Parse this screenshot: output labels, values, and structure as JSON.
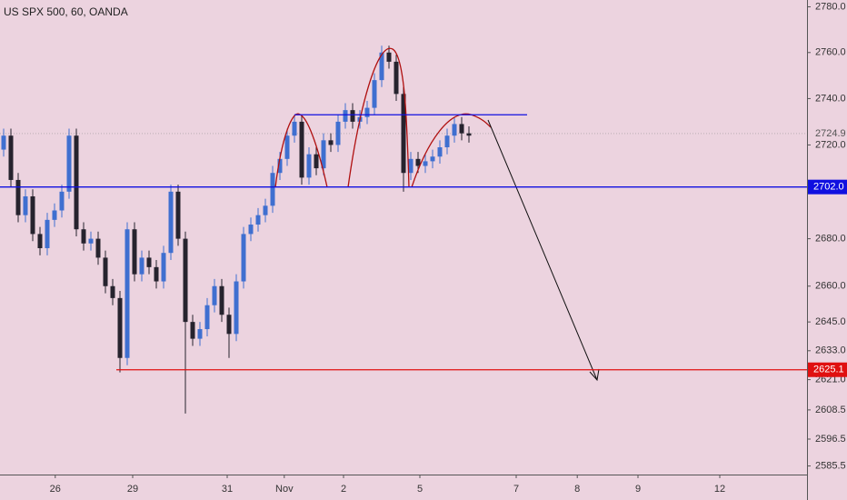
{
  "chart_data": {
    "type": "candlestick",
    "title": "US SPX 500, 60, OANDA",
    "x": [
      0,
      1,
      2,
      3,
      4,
      5,
      6,
      7,
      8,
      9,
      10,
      11,
      12,
      13,
      14,
      15,
      16,
      17,
      18,
      19,
      20,
      21,
      22,
      23,
      24,
      25,
      26,
      27,
      28,
      29,
      30,
      31,
      32,
      33,
      34,
      35,
      36,
      37,
      38,
      39,
      40,
      41,
      42,
      43,
      44,
      45,
      46,
      47,
      48,
      49,
      50,
      51,
      52,
      53,
      54,
      55,
      56,
      57,
      58,
      59,
      60,
      61,
      62,
      63,
      64
    ],
    "open": [
      2718,
      2724,
      2705,
      2690,
      2698,
      2682,
      2676,
      2688,
      2692,
      2700,
      2724,
      2684,
      2678,
      2680,
      2672,
      2660,
      2655,
      2630,
      2684,
      2665,
      2672,
      2668,
      2662,
      2674,
      2700,
      2680,
      2645,
      2638,
      2642,
      2652,
      2660,
      2648,
      2640,
      2662,
      2682,
      2686,
      2690,
      2694,
      2708,
      2714,
      2724,
      2730,
      2706,
      2716,
      2710,
      2722,
      2720,
      2730,
      2735,
      2730,
      2732,
      2736,
      2748,
      2760,
      2756,
      2742,
      2708,
      2714,
      2711,
      2713,
      2715,
      2719,
      2724,
      2729,
      2725
    ],
    "high": [
      2727,
      2727,
      2708,
      2701,
      2701,
      2685,
      2691,
      2695,
      2703,
      2727,
      2727,
      2687,
      2683,
      2683,
      2675,
      2663,
      2658,
      2687,
      2687,
      2675,
      2675,
      2671,
      2677,
      2703,
      2703,
      2683,
      2648,
      2645,
      2655,
      2663,
      2663,
      2651,
      2665,
      2685,
      2689,
      2693,
      2697,
      2711,
      2717,
      2727,
      2733,
      2733,
      2719,
      2719,
      2725,
      2725,
      2733,
      2738,
      2738,
      2735,
      2739,
      2751,
      2763,
      2763,
      2759,
      2745,
      2717,
      2717,
      2716,
      2718,
      2722,
      2727,
      2732,
      2732,
      2728
    ],
    "low": [
      2715,
      2702,
      2687,
      2687,
      2679,
      2673,
      2673,
      2685,
      2689,
      2697,
      2681,
      2675,
      2675,
      2669,
      2657,
      2652,
      2624,
      2627,
      2662,
      2662,
      2665,
      2659,
      2659,
      2671,
      2677,
      2607,
      2635,
      2635,
      2639,
      2649,
      2645,
      2630,
      2637,
      2659,
      2679,
      2683,
      2687,
      2691,
      2705,
      2711,
      2721,
      2703,
      2703,
      2707,
      2707,
      2717,
      2717,
      2727,
      2727,
      2727,
      2729,
      2733,
      2745,
      2753,
      2739,
      2700,
      2705,
      2708,
      2708,
      2710,
      2712,
      2716,
      2721,
      2722,
      2721
    ],
    "close": [
      2724,
      2705,
      2690,
      2698,
      2682,
      2676,
      2688,
      2692,
      2700,
      2724,
      2684,
      2678,
      2680,
      2672,
      2660,
      2655,
      2630,
      2684,
      2665,
      2672,
      2668,
      2662,
      2674,
      2700,
      2680,
      2645,
      2638,
      2642,
      2652,
      2660,
      2648,
      2640,
      2662,
      2682,
      2686,
      2690,
      2694,
      2708,
      2714,
      2724,
      2730,
      2706,
      2716,
      2710,
      2722,
      2720,
      2730,
      2735,
      2730,
      2732,
      2736,
      2748,
      2760,
      2756,
      2742,
      2708,
      2714,
      2711,
      2713,
      2715,
      2719,
      2724,
      2729,
      2725,
      2724
    ],
    "up_color": "#3f6fd0",
    "down_color": "#26232e",
    "log_y": true,
    "ylim": [
      2582,
      2783
    ],
    "yticks": [
      {
        "value": 2780,
        "label": "2780.0"
      },
      {
        "value": 2760,
        "label": "2760.0"
      },
      {
        "value": 2740,
        "label": "2740.0"
      },
      {
        "value": 2720,
        "label": "2720.0"
      },
      {
        "value": 2680,
        "label": "2680.0"
      },
      {
        "value": 2660,
        "label": "2660.0"
      },
      {
        "value": 2645,
        "label": "2645.0"
      },
      {
        "value": 2633,
        "label": "2633.0"
      },
      {
        "value": 2621,
        "label": "2621.0"
      },
      {
        "value": 2608.5,
        "label": "2608.5"
      },
      {
        "value": 2596.5,
        "label": "2596.5"
      },
      {
        "value": 2585.5,
        "label": "2585.5"
      }
    ],
    "xlim": [
      -0.5,
      110.5
    ],
    "xticks": [
      {
        "value": 7.1,
        "label": "26"
      },
      {
        "value": 17.75,
        "label": "29"
      },
      {
        "value": 30.75,
        "label": "31"
      },
      {
        "value": 38.6,
        "label": "Nov"
      },
      {
        "value": 46.75,
        "label": "2"
      },
      {
        "value": 57.25,
        "label": "5"
      },
      {
        "value": 70.5,
        "label": "7"
      },
      {
        "value": 78.9,
        "label": "8"
      },
      {
        "value": 87.25,
        "label": "9"
      },
      {
        "value": 98.5,
        "label": "12"
      }
    ],
    "hlines": [
      {
        "value": 2702,
        "label": "2702.0",
        "color": "#1010e0",
        "start": -0.5
      },
      {
        "value": 2625.1,
        "label": "2625.1",
        "color": "#e01010",
        "start": 15.5
      }
    ],
    "neckline": {
      "value": 2733,
      "x": [
        40,
        72
      ],
      "color": "#1010e0"
    },
    "last_price": {
      "value": 2724.9,
      "label": "2724.9"
    }
  }
}
